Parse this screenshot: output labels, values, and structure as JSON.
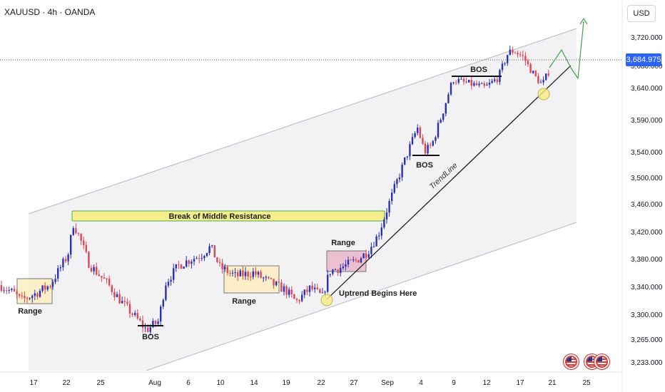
{
  "symbol": "XAUUSD · 4h · OANDA",
  "currency": "USD",
  "last_price": "3,684.975",
  "colors": {
    "up": "#2d2fb5",
    "down": "#e04555",
    "channel_fill": "#f2f2f5",
    "channel_line": "#b8b8c0",
    "range_fill": "#fbefbe",
    "range_border": "#777777",
    "range_pink": "#e9b4c9",
    "resistance_fill": "#f5ee8a",
    "resistance_border": "#4caf50",
    "projection": "#43a047",
    "highlight_circle": "#f5eb86",
    "price_badge": "#2962ff"
  },
  "icons": [
    "us-flag-icon",
    "us-flag-icon",
    "us-flag-icon"
  ],
  "chart_data": {
    "type": "candlestick",
    "timeframe": "4h",
    "y_axis": {
      "ticks": [
        "3,720.000",
        "3,680.000",
        "3,640.000",
        "3,590.000",
        "3,540.000",
        "3,500.000",
        "3,460.000",
        "3,420.000",
        "3,380.000",
        "3,340.000",
        "3,300.000",
        "3,265.000",
        "3,233.000"
      ]
    },
    "x_axis": {
      "ticks": [
        "17",
        "22",
        "25",
        "Aug",
        "6",
        "10",
        "14",
        "19",
        "22",
        "27",
        "Sep",
        "4",
        "9",
        "12",
        "17",
        "21",
        "25"
      ]
    },
    "key_closes": [
      {
        "label": "start",
        "value": 3340
      },
      {
        "label": "Jul 22 high",
        "value": 3435
      },
      {
        "label": "Aug 1 low",
        "value": 3275
      },
      {
        "label": "Aug 8 high",
        "value": 3405
      },
      {
        "label": "Aug 22 low",
        "value": 3320
      },
      {
        "label": "Sep 3 high",
        "value": 3578
      },
      {
        "label": "Sep 9 high",
        "value": 3675
      },
      {
        "label": "Sep 16 high",
        "value": 3705
      },
      {
        "label": "Sep 18 low",
        "value": 3630
      },
      {
        "label": "last",
        "value": 3684.975
      }
    ],
    "annotations": {
      "resistance_label": "Break of Middle Resistance",
      "range_labels": [
        "Range",
        "Range",
        "Range"
      ],
      "bos_labels": [
        "BOS",
        "BOS",
        "BOS"
      ],
      "uptrend_label": "Uptrend Begins Here",
      "trendline_label": "TrendLine"
    }
  }
}
